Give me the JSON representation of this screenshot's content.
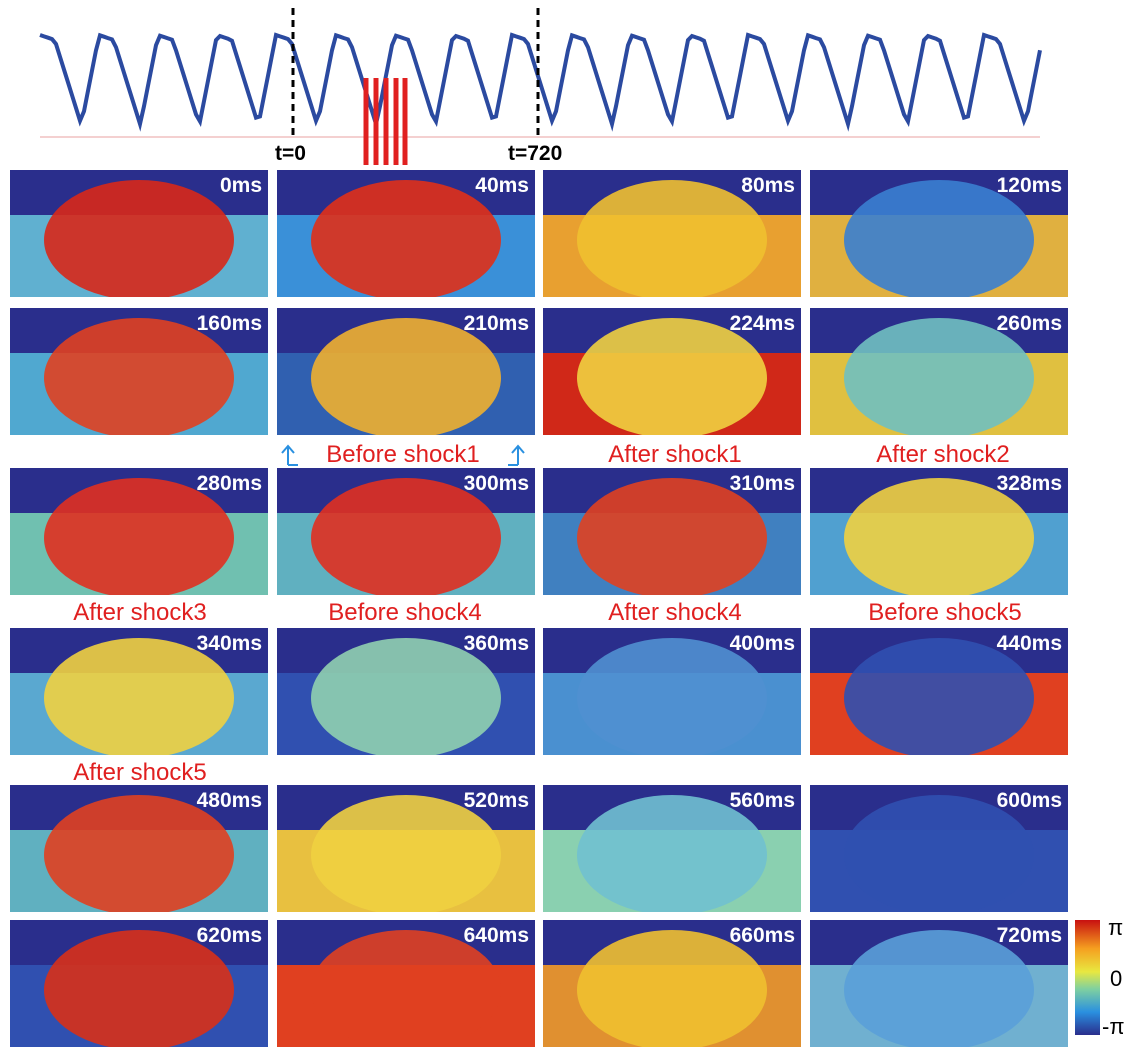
{
  "trace": {
    "markers": [
      "t=0",
      "t=720"
    ]
  },
  "panels": [
    "0ms",
    "40ms",
    "80ms",
    "120ms",
    "160ms",
    "210ms",
    "224ms",
    "260ms",
    "280ms",
    "300ms",
    "310ms",
    "328ms",
    "340ms",
    "360ms",
    "400ms",
    "440ms",
    "480ms",
    "520ms",
    "560ms",
    "600ms",
    "620ms",
    "640ms",
    "660ms",
    "720ms"
  ],
  "annotations": [
    "Before shock1",
    "After shock1",
    "After shock2",
    "After shock3",
    "Before shock4",
    "After shock4",
    "Before shock5",
    "After shock5"
  ],
  "colorbar": {
    "labels": [
      "π",
      "0",
      "-π"
    ]
  }
}
